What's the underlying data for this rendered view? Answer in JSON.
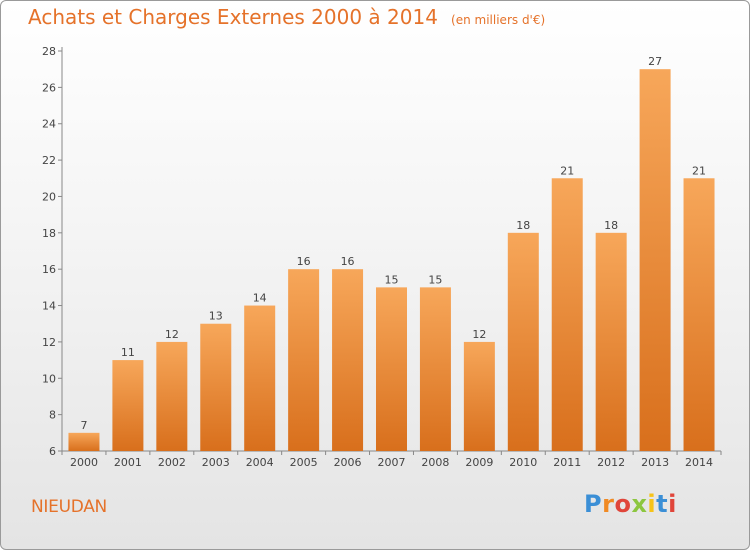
{
  "header": {
    "title": "Achats et Charges Externes 2000 à 2014",
    "subtitle": "(en milliers d'€)"
  },
  "footer": {
    "commune": "NIEUDAN",
    "logo_text": "Proxiti"
  },
  "colors": {
    "accent": "#e5722a",
    "bar_top": "#f7a75a",
    "bar_bottom": "#d86f1c"
  },
  "chart_data": {
    "type": "bar",
    "title": "Achats et Charges Externes 2000 à 2014",
    "subtitle": "(en milliers d'€)",
    "categories": [
      "2000",
      "2001",
      "2002",
      "2003",
      "2004",
      "2005",
      "2006",
      "2007",
      "2008",
      "2009",
      "2010",
      "2011",
      "2012",
      "2013",
      "2014"
    ],
    "values": [
      7,
      11,
      12,
      13,
      14,
      16,
      16,
      15,
      15,
      12,
      18,
      21,
      18,
      27,
      21
    ],
    "data_labels": [
      "7",
      "11",
      "12",
      "13",
      "14",
      "16",
      "16",
      "15",
      "15",
      "12",
      "18",
      "21",
      "18",
      "27",
      "21"
    ],
    "ylim": [
      6,
      28
    ],
    "yticks": [
      6,
      8,
      10,
      12,
      14,
      16,
      18,
      20,
      22,
      24,
      26,
      28
    ],
    "xlabel": "",
    "ylabel": "",
    "grid": false,
    "legend": "none"
  }
}
